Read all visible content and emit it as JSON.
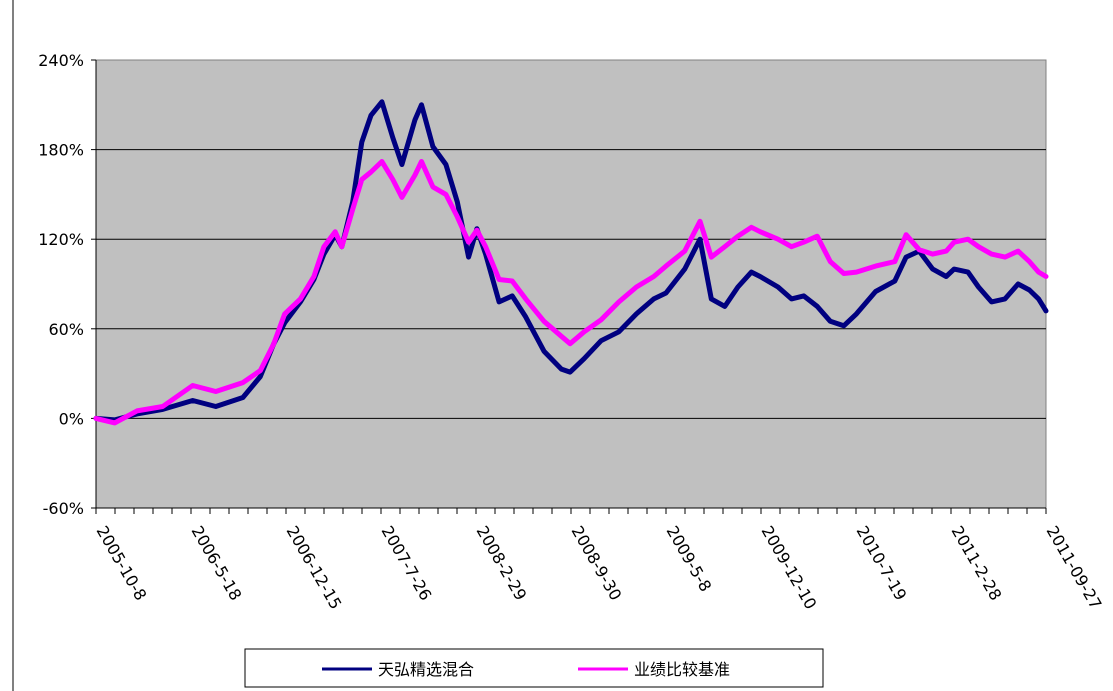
{
  "chart_data": {
    "type": "line",
    "title": "",
    "xlabel": "",
    "ylabel": "",
    "ylim": [
      -60,
      240
    ],
    "y_tick_step": 60,
    "y_tick_labels": [
      "-60%",
      "0%",
      "60%",
      "120%",
      "180%",
      "240%"
    ],
    "x_tick_labels": [
      "2005-10-8",
      "2006-5-18",
      "2006-12-15",
      "2007-7-26",
      "2008-2-29",
      "2008-9-30",
      "2009-5-8",
      "2009-12-10",
      "2010-7-19",
      "2011-2-28",
      "2011-09-27"
    ],
    "x_range": [
      "2005-10-08",
      "2011-09-27"
    ],
    "grid": true,
    "legend_position": "bottom",
    "plot_background": "#C0C0C0",
    "series": [
      {
        "name": "天弘精选混合",
        "color": "#000080",
        "points": [
          [
            "2005-10-08",
            0
          ],
          [
            "2005-11-20",
            -1
          ],
          [
            "2006-01-10",
            3
          ],
          [
            "2006-03-10",
            6
          ],
          [
            "2006-05-18",
            12
          ],
          [
            "2006-07-10",
            8
          ],
          [
            "2006-09-10",
            14
          ],
          [
            "2006-10-20",
            28
          ],
          [
            "2006-11-20",
            50
          ],
          [
            "2006-12-15",
            64
          ],
          [
            "2007-01-20",
            78
          ],
          [
            "2007-02-20",
            93
          ],
          [
            "2007-03-15",
            110
          ],
          [
            "2007-04-10",
            123
          ],
          [
            "2007-04-25",
            115
          ],
          [
            "2007-05-20",
            145
          ],
          [
            "2007-06-10",
            185
          ],
          [
            "2007-07-01",
            203
          ],
          [
            "2007-07-26",
            212
          ],
          [
            "2007-08-20",
            188
          ],
          [
            "2007-09-10",
            170
          ],
          [
            "2007-10-10",
            200
          ],
          [
            "2007-10-25",
            210
          ],
          [
            "2007-11-20",
            182
          ],
          [
            "2007-12-20",
            170
          ],
          [
            "2008-01-15",
            145
          ],
          [
            "2008-02-10",
            108
          ],
          [
            "2008-02-29",
            127
          ],
          [
            "2008-03-20",
            110
          ],
          [
            "2008-04-20",
            78
          ],
          [
            "2008-05-20",
            82
          ],
          [
            "2008-06-20",
            68
          ],
          [
            "2008-08-01",
            45
          ],
          [
            "2008-09-10",
            33
          ],
          [
            "2008-09-30",
            31
          ],
          [
            "2008-11-01",
            40
          ],
          [
            "2008-12-10",
            52
          ],
          [
            "2009-01-20",
            58
          ],
          [
            "2009-03-01",
            70
          ],
          [
            "2009-04-10",
            80
          ],
          [
            "2009-05-08",
            84
          ],
          [
            "2009-06-20",
            100
          ],
          [
            "2009-07-25",
            120
          ],
          [
            "2009-08-20",
            80
          ],
          [
            "2009-09-20",
            75
          ],
          [
            "2009-10-20",
            88
          ],
          [
            "2009-11-20",
            98
          ],
          [
            "2009-12-10",
            95
          ],
          [
            "2010-01-20",
            88
          ],
          [
            "2010-02-20",
            80
          ],
          [
            "2010-03-20",
            82
          ],
          [
            "2010-04-20",
            75
          ],
          [
            "2010-05-20",
            65
          ],
          [
            "2010-06-20",
            62
          ],
          [
            "2010-07-19",
            70
          ],
          [
            "2010-09-01",
            85
          ],
          [
            "2010-10-15",
            92
          ],
          [
            "2010-11-10",
            108
          ],
          [
            "2010-12-10",
            112
          ],
          [
            "2011-01-10",
            100
          ],
          [
            "2011-02-10",
            95
          ],
          [
            "2011-02-28",
            100
          ],
          [
            "2011-04-01",
            98
          ],
          [
            "2011-04-25",
            88
          ],
          [
            "2011-05-25",
            78
          ],
          [
            "2011-06-25",
            80
          ],
          [
            "2011-07-25",
            90
          ],
          [
            "2011-08-20",
            86
          ],
          [
            "2011-09-10",
            80
          ],
          [
            "2011-09-27",
            72
          ]
        ]
      },
      {
        "name": "业绩比较基准",
        "color": "#FF00FF",
        "points": [
          [
            "2005-10-08",
            0
          ],
          [
            "2005-11-20",
            -3
          ],
          [
            "2006-01-10",
            5
          ],
          [
            "2006-03-10",
            8
          ],
          [
            "2006-05-18",
            22
          ],
          [
            "2006-07-10",
            18
          ],
          [
            "2006-09-10",
            24
          ],
          [
            "2006-10-20",
            32
          ],
          [
            "2006-11-20",
            50
          ],
          [
            "2006-12-15",
            70
          ],
          [
            "2007-01-20",
            80
          ],
          [
            "2007-02-20",
            95
          ],
          [
            "2007-03-15",
            115
          ],
          [
            "2007-04-10",
            125
          ],
          [
            "2007-04-25",
            115
          ],
          [
            "2007-05-20",
            140
          ],
          [
            "2007-06-10",
            160
          ],
          [
            "2007-07-01",
            165
          ],
          [
            "2007-07-26",
            172
          ],
          [
            "2007-08-20",
            160
          ],
          [
            "2007-09-10",
            148
          ],
          [
            "2007-10-10",
            163
          ],
          [
            "2007-10-25",
            172
          ],
          [
            "2007-11-20",
            155
          ],
          [
            "2007-12-20",
            150
          ],
          [
            "2008-01-15",
            135
          ],
          [
            "2008-02-10",
            118
          ],
          [
            "2008-02-29",
            126
          ],
          [
            "2008-03-20",
            115
          ],
          [
            "2008-04-20",
            93
          ],
          [
            "2008-05-20",
            92
          ],
          [
            "2008-06-20",
            80
          ],
          [
            "2008-08-01",
            65
          ],
          [
            "2008-09-10",
            55
          ],
          [
            "2008-09-30",
            50
          ],
          [
            "2008-11-01",
            58
          ],
          [
            "2008-12-10",
            66
          ],
          [
            "2009-01-20",
            78
          ],
          [
            "2009-03-01",
            88
          ],
          [
            "2009-04-10",
            95
          ],
          [
            "2009-05-08",
            102
          ],
          [
            "2009-06-20",
            112
          ],
          [
            "2009-07-25",
            132
          ],
          [
            "2009-08-20",
            108
          ],
          [
            "2009-09-20",
            115
          ],
          [
            "2009-10-20",
            122
          ],
          [
            "2009-11-20",
            128
          ],
          [
            "2009-12-10",
            125
          ],
          [
            "2010-01-20",
            120
          ],
          [
            "2010-02-20",
            115
          ],
          [
            "2010-03-20",
            118
          ],
          [
            "2010-04-20",
            122
          ],
          [
            "2010-05-20",
            105
          ],
          [
            "2010-06-20",
            97
          ],
          [
            "2010-07-19",
            98
          ],
          [
            "2010-09-01",
            102
          ],
          [
            "2010-10-15",
            105
          ],
          [
            "2010-11-10",
            123
          ],
          [
            "2010-12-10",
            113
          ],
          [
            "2011-01-10",
            110
          ],
          [
            "2011-02-10",
            112
          ],
          [
            "2011-02-28",
            118
          ],
          [
            "2011-04-01",
            120
          ],
          [
            "2011-04-25",
            115
          ],
          [
            "2011-05-25",
            110
          ],
          [
            "2011-06-25",
            108
          ],
          [
            "2011-07-25",
            112
          ],
          [
            "2011-08-20",
            105
          ],
          [
            "2011-09-10",
            98
          ],
          [
            "2011-09-27",
            95
          ]
        ]
      }
    ]
  }
}
